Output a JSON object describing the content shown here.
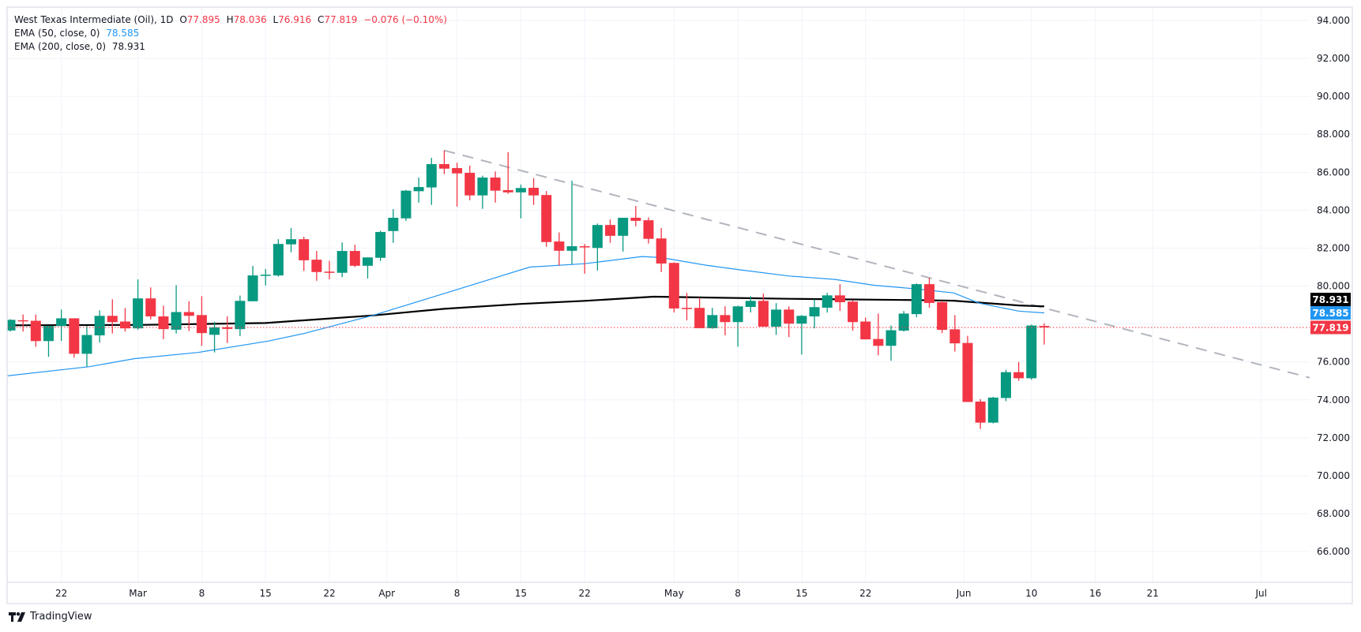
{
  "legend": {
    "symbol": "West Texas Intermediate (Oil), 1D",
    "open_label": "O",
    "open": "77.895",
    "high_label": "H",
    "high": "78.036",
    "low_label": "L",
    "low": "76.916",
    "close_label": "C",
    "close": "77.819",
    "change": "−0.076 (−0.10%)",
    "ema50_label": "EMA (50, close, 0)",
    "ema50_value": "78.585",
    "ema200_label": "EMA (200, close, 0)",
    "ema200_value": "78.931"
  },
  "branding": {
    "logo_text": "TradingView"
  },
  "colors": {
    "up": "#089981",
    "down": "#F23645",
    "ema50": "#2196F3",
    "ema200": "#000000",
    "trendline": "#B2B5BE",
    "grid": "#F0F3FA"
  },
  "chart_data": {
    "type": "candlestick",
    "title": "West Texas Intermediate (Oil), 1D",
    "ylim": [
      64.9,
      94.7
    ],
    "y_ticks": [
      "94.000",
      "92.000",
      "90.000",
      "88.000",
      "86.000",
      "84.000",
      "82.000",
      "80.000",
      "78.000",
      "76.000",
      "74.000",
      "72.000",
      "70.000",
      "68.000",
      "66.000"
    ],
    "x_ticks": [
      {
        "label": "22",
        "bar": 4
      },
      {
        "label": "Mar",
        "bar": 10
      },
      {
        "label": "8",
        "bar": 15
      },
      {
        "label": "15",
        "bar": 20
      },
      {
        "label": "22",
        "bar": 25
      },
      {
        "label": "Apr",
        "bar": 29.5
      },
      {
        "label": "8",
        "bar": 35
      },
      {
        "label": "15",
        "bar": 40
      },
      {
        "label": "22",
        "bar": 45
      },
      {
        "label": "May",
        "bar": 52
      },
      {
        "label": "8",
        "bar": 57
      },
      {
        "label": "15",
        "bar": 62
      },
      {
        "label": "22",
        "bar": 67
      },
      {
        "label": "Jun",
        "bar": 74.7
      },
      {
        "label": "10",
        "bar": 80
      },
      {
        "label": "16",
        "bar": 85
      },
      {
        "label": "21",
        "bar": 89.5
      },
      {
        "label": "Jul",
        "bar": 98
      }
    ],
    "ohlc": [
      [
        77.66,
        78.25,
        77.6,
        78.22
      ],
      [
        78.2,
        78.5,
        77.6,
        78.15
      ],
      [
        78.17,
        78.5,
        76.8,
        77.1
      ],
      [
        77.1,
        77.9,
        76.27,
        77.9
      ],
      [
        77.9,
        78.76,
        77.1,
        78.3
      ],
      [
        78.3,
        78.3,
        76.22,
        76.43
      ],
      [
        76.43,
        77.9,
        75.75,
        77.42
      ],
      [
        77.4,
        78.72,
        77.02,
        78.43
      ],
      [
        78.43,
        79.3,
        77.5,
        78.1
      ],
      [
        78.13,
        78.84,
        77.6,
        77.77
      ],
      [
        77.77,
        80.35,
        77.7,
        79.35
      ],
      [
        79.35,
        79.93,
        78.24,
        78.4
      ],
      [
        78.4,
        78.97,
        77.2,
        77.73
      ],
      [
        77.7,
        80.05,
        77.5,
        78.63
      ],
      [
        78.63,
        79.2,
        77.63,
        78.43
      ],
      [
        78.47,
        79.47,
        76.85,
        77.52
      ],
      [
        77.43,
        78.12,
        76.5,
        77.82
      ],
      [
        77.83,
        78.4,
        77.0,
        77.74
      ],
      [
        77.73,
        79.5,
        77.36,
        79.22
      ],
      [
        79.2,
        81.06,
        79.2,
        80.56
      ],
      [
        80.56,
        80.9,
        80.03,
        80.6
      ],
      [
        80.56,
        82.47,
        80.5,
        82.22
      ],
      [
        82.2,
        83.06,
        81.78,
        82.47
      ],
      [
        82.47,
        82.6,
        80.8,
        81.36
      ],
      [
        81.39,
        81.85,
        80.28,
        80.74
      ],
      [
        80.76,
        81.33,
        80.35,
        80.73
      ],
      [
        80.7,
        82.3,
        80.47,
        81.85
      ],
      [
        81.85,
        82.18,
        81.0,
        81.07
      ],
      [
        81.07,
        81.51,
        80.4,
        81.51
      ],
      [
        81.49,
        82.92,
        81.32,
        82.85
      ],
      [
        82.9,
        84.05,
        82.28,
        83.6
      ],
      [
        83.57,
        85.07,
        83.44,
        85.03
      ],
      [
        85.0,
        85.72,
        84.4,
        85.22
      ],
      [
        85.2,
        86.76,
        84.28,
        86.43
      ],
      [
        86.43,
        87.15,
        85.9,
        86.19
      ],
      [
        86.22,
        86.5,
        84.19,
        85.94
      ],
      [
        85.97,
        86.35,
        84.53,
        84.78
      ],
      [
        84.78,
        85.82,
        84.07,
        85.72
      ],
      [
        85.72,
        86.04,
        84.4,
        85.03
      ],
      [
        85.06,
        87.06,
        84.86,
        84.94
      ],
      [
        84.94,
        85.35,
        83.57,
        85.17
      ],
      [
        85.18,
        85.69,
        84.28,
        84.78
      ],
      [
        84.8,
        85.01,
        82.07,
        82.32
      ],
      [
        82.35,
        82.83,
        81.08,
        81.86
      ],
      [
        81.86,
        85.56,
        81.14,
        82.1
      ],
      [
        82.1,
        82.22,
        80.65,
        82.06
      ],
      [
        82.01,
        83.3,
        80.82,
        83.22
      ],
      [
        83.22,
        83.51,
        82.28,
        82.65
      ],
      [
        82.65,
        83.6,
        81.82,
        83.6
      ],
      [
        83.6,
        84.22,
        83.15,
        83.44
      ],
      [
        83.47,
        83.62,
        82.24,
        82.49
      ],
      [
        82.51,
        83.06,
        80.74,
        81.19
      ],
      [
        81.22,
        81.25,
        78.61,
        78.82
      ],
      [
        78.85,
        79.64,
        78.19,
        78.82
      ],
      [
        78.85,
        79.39,
        77.78,
        77.78
      ],
      [
        77.78,
        78.85,
        77.75,
        78.47
      ],
      [
        78.47,
        78.93,
        77.4,
        78.1
      ],
      [
        78.1,
        78.97,
        76.8,
        78.93
      ],
      [
        78.9,
        79.47,
        78.61,
        79.22
      ],
      [
        79.22,
        79.6,
        77.86,
        77.86
      ],
      [
        77.86,
        79.1,
        77.43,
        78.76
      ],
      [
        78.76,
        78.93,
        77.31,
        78.02
      ],
      [
        78.02,
        78.47,
        76.39,
        78.43
      ],
      [
        78.4,
        79.3,
        77.77,
        78.89
      ],
      [
        78.86,
        79.64,
        78.6,
        79.51
      ],
      [
        79.51,
        80.1,
        78.69,
        79.15
      ],
      [
        79.18,
        79.26,
        77.65,
        78.1
      ],
      [
        78.13,
        78.34,
        77.19,
        77.19
      ],
      [
        77.21,
        78.55,
        76.35,
        76.85
      ],
      [
        76.85,
        77.92,
        76.06,
        77.67
      ],
      [
        77.65,
        78.68,
        77.6,
        78.55
      ],
      [
        78.52,
        80.14,
        78.36,
        80.1
      ],
      [
        80.1,
        80.43,
        78.86,
        79.11
      ],
      [
        79.15,
        79.22,
        77.52,
        77.69
      ],
      [
        77.72,
        78.47,
        76.55,
        76.98
      ],
      [
        77.0,
        77.38,
        73.89,
        73.89
      ],
      [
        73.91,
        74.04,
        72.47,
        72.8
      ],
      [
        72.8,
        74.16,
        72.76,
        74.12
      ],
      [
        74.1,
        75.58,
        73.93,
        75.46
      ],
      [
        75.46,
        76.0,
        75.01,
        75.14
      ],
      [
        75.14,
        77.97,
        75.06,
        77.92
      ],
      [
        77.895,
        78.036,
        76.916,
        77.819
      ]
    ],
    "ema50": [
      [
        -0.3,
        75.26
      ],
      [
        6.2,
        75.75
      ],
      [
        9.7,
        76.17
      ],
      [
        14.7,
        76.5
      ],
      [
        20.2,
        77.1
      ],
      [
        23,
        77.5
      ],
      [
        28.4,
        78.45
      ],
      [
        32.5,
        79.3
      ],
      [
        40.7,
        81.0
      ],
      [
        45,
        81.18
      ],
      [
        49.5,
        81.56
      ],
      [
        51,
        81.5
      ],
      [
        54.5,
        81.1
      ],
      [
        57,
        80.87
      ],
      [
        61,
        80.53
      ],
      [
        64.6,
        80.35
      ],
      [
        67.7,
        80.04
      ],
      [
        70.8,
        79.86
      ],
      [
        73.9,
        79.64
      ],
      [
        75.9,
        79.1
      ],
      [
        79,
        78.68
      ],
      [
        81,
        78.585
      ]
    ],
    "ema200": [
      [
        -0.3,
        77.93
      ],
      [
        10,
        77.95
      ],
      [
        20,
        78.05
      ],
      [
        28.4,
        78.45
      ],
      [
        34,
        78.8
      ],
      [
        40,
        79.06
      ],
      [
        45,
        79.22
      ],
      [
        50.4,
        79.44
      ],
      [
        61,
        79.33
      ],
      [
        70.8,
        79.26
      ],
      [
        73.9,
        79.23
      ],
      [
        79,
        78.98
      ],
      [
        81,
        78.931
      ]
    ],
    "trendline": {
      "start": [
        34,
        87.15
      ],
      "end": [
        101.9,
        75.15
      ]
    },
    "last_price": {
      "value": 77.819,
      "label": "77.819"
    },
    "price_tags": [
      {
        "label": "78.931",
        "value": 78.931,
        "color": "#000000",
        "series": "EMA 200"
      },
      {
        "label": "78.585",
        "value": 78.585,
        "color": "#2196F3",
        "series": "EMA 50"
      },
      {
        "label": "77.819",
        "value": 77.819,
        "color": "#F23645",
        "series": "Close"
      }
    ]
  }
}
